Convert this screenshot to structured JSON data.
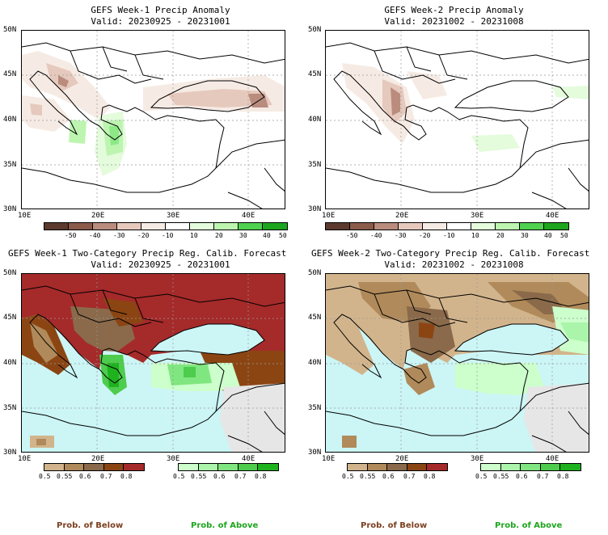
{
  "panels": [
    {
      "title": "GEFS Week-1 Precip Anomaly",
      "valid": "Valid: 20230925 - 20231001",
      "kind": "anomaly",
      "colorbar_labels": [
        "-50",
        "-40",
        "-30",
        "-20",
        "-10",
        "10",
        "20",
        "30",
        "40",
        "50"
      ]
    },
    {
      "title": "GEFS Week-2 Precip Anomaly",
      "valid": "Valid: 20231002 - 20231008",
      "kind": "anomaly",
      "colorbar_labels": [
        "-50",
        "-40",
        "-30",
        "-20",
        "-10",
        "10",
        "20",
        "30",
        "40",
        "50"
      ]
    },
    {
      "title": "GEFS Week-1 Two-Category Precip Reg. Calib. Forecast",
      "valid": "Valid: 20230925 - 20231001",
      "kind": "probability",
      "below_labels": [
        "0.5",
        "0.55",
        "0.6",
        "0.7",
        "0.8"
      ],
      "above_labels": [
        "0.5",
        "0.55",
        "0.6",
        "0.7",
        "0.8"
      ],
      "below_title": "Prob. of Below",
      "above_title": "Prob. of Above"
    },
    {
      "title": "GEFS Week-2 Two-Category Precip Reg. Calib. Forecast",
      "valid": "Valid: 20231002 - 20231008",
      "kind": "probability",
      "below_labels": [
        "0.5",
        "0.55",
        "0.6",
        "0.7",
        "0.8"
      ],
      "above_labels": [
        "0.5",
        "0.55",
        "0.6",
        "0.7",
        "0.8"
      ],
      "below_title": "Prob. of Below",
      "above_title": "Prob. of Above"
    }
  ],
  "lat_ticks": [
    "50N",
    "45N",
    "40N",
    "35N",
    "30N"
  ],
  "lon_ticks": [
    "10E",
    "20E",
    "30E",
    "40E"
  ],
  "colors": {
    "anomaly_dry": [
      "#5c3a2e",
      "#8a5a4a",
      "#b98c7e",
      "#e6c9bd",
      "#f6ebe4"
    ],
    "anomaly_wet": [
      "#e4fbdc",
      "#bdf5b0",
      "#8de888",
      "#4fd24f",
      "#1ea51e"
    ],
    "prob_below": [
      "#d2b48c",
      "#b08a5a",
      "#8a6a4a",
      "#8b4513",
      "#a52a2a"
    ],
    "prob_above": [
      "#ccffcc",
      "#aaf5aa",
      "#80e680",
      "#4dcc4d",
      "#1fb21f"
    ],
    "sea": "#ccf5f5",
    "nodata": "#e6e6e6",
    "below_text": "#7b3f1e",
    "above_text": "#1ea51e"
  }
}
